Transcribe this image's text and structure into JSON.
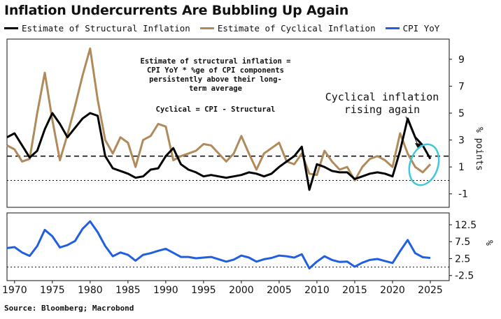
{
  "title": "Inflation Undercurrents Are Bubbling Up Again",
  "source": "Source: Bloomberg; Macrobond",
  "colors": {
    "structural": "#000000",
    "cyclical": "#b08a5a",
    "cpi": "#1f5fe0",
    "highlight": "#3ec8d8"
  },
  "legend": [
    {
      "label": "Estimate of Structural Inflation",
      "color": "#000000"
    },
    {
      "label": "Estimate of Cyclical Inflation",
      "color": "#b08a5a"
    },
    {
      "label": "CPI YoY",
      "color": "#1f5fe0"
    }
  ],
  "annotations": {
    "formula_lines": [
      "Estimate of structural inflation =",
      "CPI YoY * %ge of CPI components",
      "persistently above their long-",
      "term average"
    ],
    "cyclical_def": "Cyclical = CPI - Structural",
    "callout_lines": [
      "Cyclical inflation",
      "rising again"
    ]
  },
  "chart_data": [
    {
      "type": "line",
      "panel": "top",
      "ylabel": "% points",
      "ylim": [
        -2,
        10.5
      ],
      "yticks": [
        "9",
        "7",
        "5",
        "3",
        "1",
        "-1"
      ],
      "reference_lines": [
        {
          "y": 1.8,
          "style": "dashed",
          "label": "long-term average"
        },
        {
          "y": 0,
          "style": "dotted"
        }
      ],
      "series": [
        {
          "name": "Estimate of Structural Inflation",
          "x": [
            1969,
            1970,
            1971,
            1972,
            1973,
            1974,
            1975,
            1976,
            1977,
            1978,
            1979,
            1980,
            1981,
            1982,
            1983,
            1984,
            1985,
            1986,
            1987,
            1988,
            1989,
            1990,
            1991,
            1992,
            1993,
            1994,
            1995,
            1996,
            1997,
            1998,
            1999,
            2000,
            2001,
            2002,
            2003,
            2004,
            2005,
            2006,
            2007,
            2008,
            2009,
            2010,
            2011,
            2012,
            2013,
            2014,
            2015,
            2016,
            2017,
            2018,
            2019,
            2020,
            2021,
            2022,
            2023,
            2024,
            2025
          ],
          "y": [
            3.2,
            3.5,
            2.6,
            1.7,
            2.2,
            3.8,
            5.0,
            4.2,
            3.2,
            3.9,
            4.6,
            5.0,
            4.8,
            1.8,
            0.9,
            0.7,
            0.5,
            0.2,
            0.3,
            0.8,
            0.9,
            1.8,
            2.4,
            1.2,
            0.8,
            0.6,
            0.3,
            0.4,
            0.3,
            0.2,
            0.3,
            0.4,
            0.6,
            0.5,
            0.3,
            0.5,
            1.0,
            1.4,
            1.8,
            2.5,
            -0.7,
            1.2,
            1.0,
            0.7,
            0.6,
            0.6,
            0.1,
            0.3,
            0.5,
            0.6,
            0.5,
            0.3,
            2.2,
            4.6,
            3.2,
            2.6,
            1.6
          ]
        },
        {
          "name": "Estimate of Cyclical Inflation",
          "x": [
            1969,
            1970,
            1971,
            1972,
            1973,
            1974,
            1975,
            1976,
            1977,
            1978,
            1979,
            1980,
            1981,
            1982,
            1983,
            1984,
            1985,
            1986,
            1987,
            1988,
            1989,
            1990,
            1991,
            1992,
            1993,
            1994,
            1995,
            1996,
            1997,
            1998,
            1999,
            2000,
            2001,
            2002,
            2003,
            2004,
            2005,
            2006,
            2007,
            2008,
            2009,
            2010,
            2011,
            2012,
            2013,
            2014,
            2015,
            2016,
            2017,
            2018,
            2019,
            2020,
            2021,
            2022,
            2023,
            2024,
            2025
          ],
          "y": [
            2.6,
            2.3,
            1.4,
            1.6,
            5.0,
            8.0,
            4.5,
            1.5,
            3.4,
            5.5,
            7.8,
            9.8,
            6.0,
            3.0,
            2.0,
            3.2,
            2.8,
            1.0,
            3.0,
            3.3,
            4.2,
            4.0,
            1.5,
            1.8,
            2.0,
            2.2,
            2.7,
            2.6,
            2.0,
            1.4,
            2.0,
            3.3,
            2.0,
            0.8,
            2.0,
            2.4,
            2.8,
            1.4,
            1.2,
            2.0,
            0.5,
            0.4,
            2.2,
            1.4,
            0.8,
            1.0,
            0.0,
            1.0,
            1.6,
            1.8,
            1.5,
            1.0,
            3.5,
            2.0,
            1.0,
            0.6,
            1.2
          ]
        }
      ]
    },
    {
      "type": "line",
      "panel": "bottom",
      "ylabel": "%",
      "ylim": [
        -4,
        16
      ],
      "yticks": [
        "12.5",
        "7.5",
        "2.5",
        "-2.5"
      ],
      "reference_lines": [
        {
          "y": 0,
          "style": "dotted"
        }
      ],
      "xticks": [
        "1970",
        "1975",
        "1980",
        "1985",
        "1990",
        "1995",
        "2000",
        "2005",
        "2010",
        "2015",
        "2020",
        "2025"
      ],
      "series": [
        {
          "name": "CPI YoY",
          "x": [
            1969,
            1970,
            1971,
            1972,
            1973,
            1974,
            1975,
            1976,
            1977,
            1978,
            1979,
            1980,
            1981,
            1982,
            1983,
            1984,
            1985,
            1986,
            1987,
            1988,
            1989,
            1990,
            1991,
            1992,
            1993,
            1994,
            1995,
            1996,
            1997,
            1998,
            1999,
            2000,
            2001,
            2002,
            2003,
            2004,
            2005,
            2006,
            2007,
            2008,
            2009,
            2010,
            2011,
            2012,
            2013,
            2014,
            2015,
            2016,
            2017,
            2018,
            2019,
            2020,
            2021,
            2022,
            2023,
            2024,
            2025
          ],
          "y": [
            5.6,
            5.9,
            4.3,
            3.3,
            6.2,
            11.0,
            9.1,
            5.8,
            6.5,
            7.7,
            11.3,
            13.5,
            10.3,
            6.2,
            3.2,
            4.3,
            3.6,
            1.9,
            3.6,
            4.1,
            4.8,
            5.4,
            4.2,
            3.0,
            3.0,
            2.6,
            2.8,
            3.0,
            2.3,
            1.6,
            2.2,
            3.4,
            2.8,
            1.6,
            2.3,
            2.7,
            3.4,
            3.2,
            2.8,
            3.8,
            -0.4,
            1.6,
            3.2,
            2.1,
            1.5,
            1.6,
            0.1,
            1.3,
            2.1,
            2.4,
            1.8,
            1.2,
            4.7,
            8.0,
            4.1,
            2.9,
            2.7
          ]
        }
      ]
    }
  ]
}
